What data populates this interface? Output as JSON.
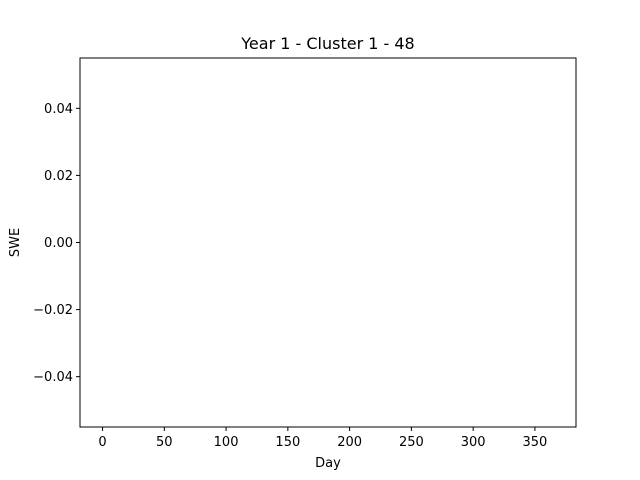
{
  "chart_data": {
    "type": "line",
    "title": "Year 1 - Cluster 1 - 48",
    "xlabel": "Day",
    "ylabel": "SWE",
    "xlim": [
      -18.25,
      383.25
    ],
    "ylim": [
      -0.055,
      0.055
    ],
    "x_ticks": [
      0,
      50,
      100,
      150,
      200,
      250,
      300,
      350
    ],
    "x_tick_labels": [
      "0",
      "50",
      "100",
      "150",
      "200",
      "250",
      "300",
      "350"
    ],
    "y_ticks": [
      -0.04,
      -0.02,
      0.0,
      0.02,
      0.04
    ],
    "y_tick_labels": [
      "−0.04",
      "−0.02",
      "0.00",
      "0.02",
      "0.04"
    ],
    "grid": false,
    "series": []
  }
}
